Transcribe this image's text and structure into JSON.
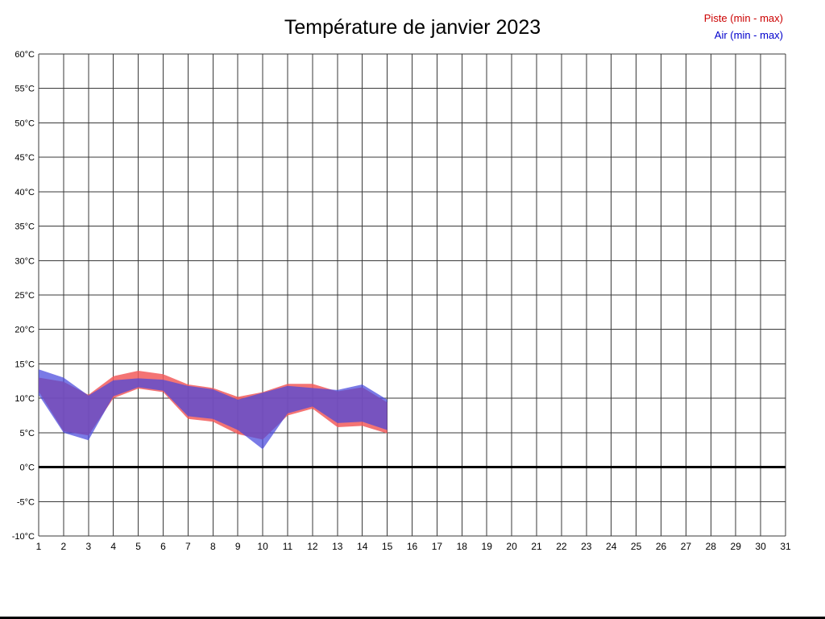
{
  "page": {
    "title": "Température de janvier 2023"
  },
  "legend": {
    "piste": "Piste (min - max)",
    "air": "Air (min - max)",
    "piste_text_color": "#cc0000",
    "air_text_color": "#0000cc"
  },
  "chart_data": {
    "type": "area",
    "title": "Température de janvier 2023",
    "xlabel": "",
    "ylabel": "",
    "xlim": [
      1,
      31
    ],
    "ylim": [
      -10,
      60
    ],
    "grid": true,
    "legend_position": "top-right",
    "zero_line_value": 0,
    "xtick_labels": [
      "1",
      "2",
      "3",
      "4",
      "5",
      "6",
      "7",
      "8",
      "9",
      "10",
      "11",
      "12",
      "13",
      "14",
      "15",
      "16",
      "17",
      "18",
      "19",
      "20",
      "21",
      "22",
      "23",
      "24",
      "25",
      "26",
      "27",
      "28",
      "29",
      "30",
      "31"
    ],
    "ytick_values": [
      60,
      55,
      50,
      45,
      40,
      35,
      30,
      25,
      20,
      15,
      10,
      5,
      0,
      -5,
      -10
    ],
    "ytick_labels": [
      "60°C",
      "55°C",
      "50°C",
      "45°C",
      "40°C",
      "35°C",
      "30°C",
      "25°C",
      "20°C",
      "15°C",
      "10°C",
      "5°C",
      "0°C",
      "-5°C",
      "-10°C"
    ],
    "days": [
      1,
      2,
      3,
      4,
      5,
      6,
      7,
      8,
      9,
      10,
      11,
      12,
      13,
      14,
      15
    ],
    "series": [
      {
        "name": "Piste (min - max)",
        "band_color": "#f25c5c",
        "opacity": 0.85,
        "max": [
          13.0,
          12.4,
          10.5,
          13.2,
          14.0,
          13.5,
          12.0,
          11.5,
          10.2,
          10.9,
          12.1,
          12.1,
          11.0,
          11.6,
          9.4
        ],
        "min": [
          11.0,
          5.2,
          4.6,
          10.0,
          11.4,
          10.9,
          7.0,
          6.6,
          4.8,
          4.0,
          7.5,
          8.5,
          5.8,
          6.0,
          4.9
        ]
      },
      {
        "name": "Air (min - max)",
        "band_color": "#4747dd",
        "opacity": 0.72,
        "max": [
          14.2,
          13.0,
          10.4,
          12.6,
          12.9,
          12.7,
          11.8,
          11.3,
          9.8,
          10.8,
          11.8,
          11.5,
          11.2,
          12.0,
          9.8
        ],
        "min": [
          10.5,
          5.0,
          3.9,
          10.3,
          11.6,
          11.1,
          7.4,
          7.0,
          5.4,
          2.6,
          7.8,
          8.8,
          6.4,
          6.6,
          5.4
        ]
      }
    ],
    "grid_color": "#3a3a3a",
    "zero_line_color": "#000000"
  }
}
